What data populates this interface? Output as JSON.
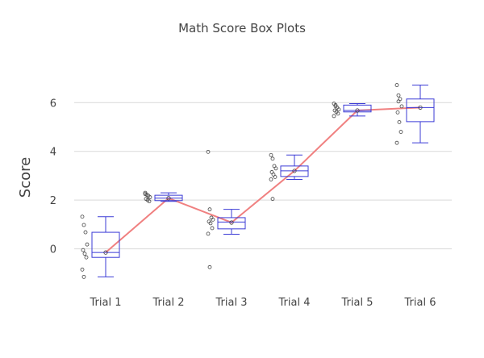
{
  "chart_data": {
    "type": "box",
    "title": "Math Score Box Plots",
    "xlabel": "",
    "ylabel": "Score",
    "categories": [
      "Trial 1",
      "Trial 2",
      "Trial 3",
      "Trial 4",
      "Trial 5",
      "Trial 6"
    ],
    "yticks": [
      0,
      2,
      4,
      6
    ],
    "ylim": [
      -1.7,
      7.4
    ],
    "grid": true,
    "legend": "none",
    "colors": {
      "box": "#3b3bd6",
      "mean_line": "#f08080",
      "points": "#444444",
      "grid": "#d9d9d9",
      "axis_text": "#444444"
    },
    "boxes": [
      {
        "category": "Trial 1",
        "min": -1.15,
        "q1": -0.35,
        "median": -0.15,
        "q3": 0.68,
        "max": 1.32,
        "mean": -0.15,
        "points": [
          1.32,
          0.98,
          0.68,
          0.18,
          -0.05,
          -0.2,
          -0.35,
          -0.85,
          -1.15
        ]
      },
      {
        "category": "Trial 2",
        "min": 1.95,
        "q1": 1.98,
        "median": 2.08,
        "q3": 2.2,
        "max": 2.3,
        "mean": 2.08,
        "points": [
          2.3,
          2.22,
          2.18,
          2.12,
          2.05,
          2.0,
          1.95,
          2.25
        ]
      },
      {
        "category": "Trial 3",
        "min": 0.6,
        "q1": 0.82,
        "median": 1.1,
        "q3": 1.28,
        "max": 1.62,
        "mean": 1.08,
        "points": [
          3.98,
          1.62,
          1.28,
          1.2,
          1.12,
          1.05,
          0.85,
          0.62,
          -0.75
        ]
      },
      {
        "category": "Trial 4",
        "min": 2.85,
        "q1": 2.97,
        "median": 3.2,
        "q3": 3.4,
        "max": 3.85,
        "mean": 3.2,
        "points": [
          3.85,
          3.7,
          3.4,
          3.3,
          3.15,
          3.05,
          2.95,
          2.85,
          2.05
        ]
      },
      {
        "category": "Trial 5",
        "min": 5.45,
        "q1": 5.62,
        "median": 5.68,
        "q3": 5.9,
        "max": 5.96,
        "mean": 5.68,
        "points": [
          5.96,
          5.9,
          5.8,
          5.72,
          5.68,
          5.62,
          5.55,
          5.45,
          5.85
        ]
      },
      {
        "category": "Trial 6",
        "min": 4.35,
        "q1": 5.22,
        "median": 5.8,
        "q3": 6.15,
        "max": 6.72,
        "mean": 5.8,
        "points": [
          6.72,
          6.3,
          6.15,
          5.85,
          5.6,
          5.2,
          4.8,
          4.35,
          6.05
        ]
      }
    ]
  }
}
